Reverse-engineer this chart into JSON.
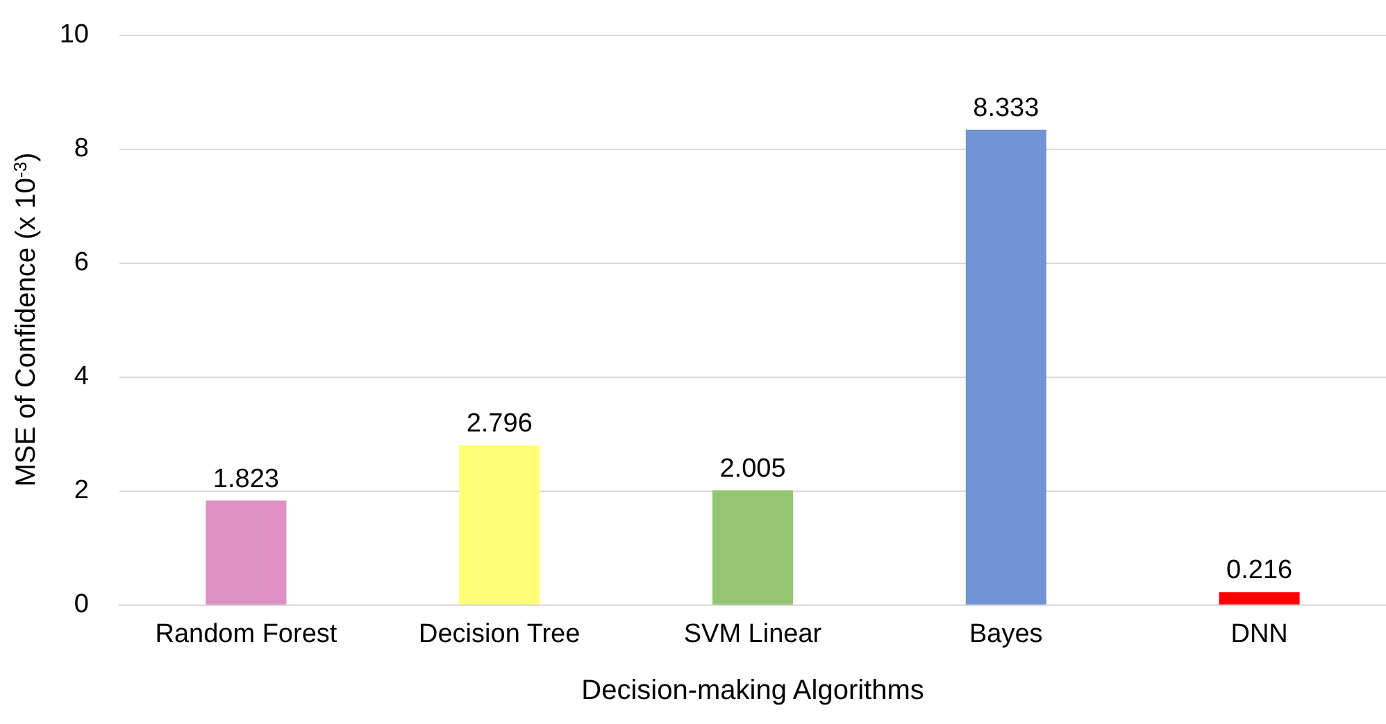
{
  "chart_data": {
    "type": "bar",
    "xlabel": "Decision-making Algorithms",
    "ylabel": "MSE of Confidence (x 10$^{-3}$)",
    "categories": [
      "Random Forest",
      "Decision Tree",
      "SVM Linear",
      "Bayes",
      "DNN"
    ],
    "values": [
      1.823,
      2.796,
      2.005,
      8.333,
      0.216
    ],
    "colors": [
      "#de8fc3",
      "#ffff75",
      "#93c572",
      "#7094d4",
      "#ff0000"
    ],
    "ylim": [
      0,
      10
    ],
    "yticks": [
      0,
      2,
      4,
      6,
      8,
      10
    ],
    "grid": "y",
    "data_labels": true
  }
}
